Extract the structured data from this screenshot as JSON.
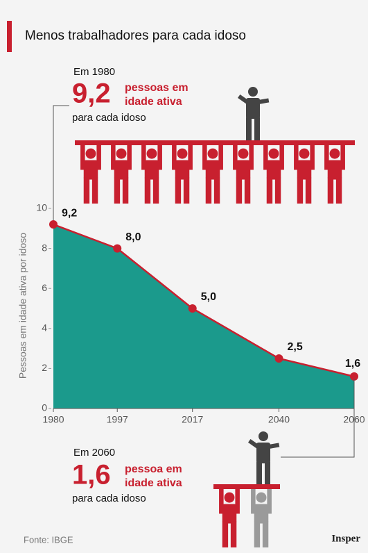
{
  "chart_data": {
    "type": "area",
    "title": "Menos trabalhadores para cada idoso",
    "ylabel": "Pessoas em idade ativa por idoso",
    "x": [
      1980,
      1997,
      2017,
      2040,
      2060
    ],
    "values": [
      9.2,
      8.0,
      5.0,
      2.5,
      1.6
    ],
    "value_labels": [
      "9,2",
      "8,0",
      "5,0",
      "2,5",
      "1,6"
    ],
    "xlim": [
      1980,
      2060
    ],
    "xticks": [
      1980,
      1997,
      2017,
      2040,
      2060
    ],
    "ylim": [
      0,
      10
    ],
    "yticks": [
      0,
      2,
      4,
      6,
      8,
      10
    ],
    "color": "#1b9a8c",
    "line_color": "#c8202f"
  },
  "annotations": {
    "top": {
      "intro": "Em 1980",
      "number": "9,2",
      "text_lines": [
        "pessoas em",
        "idade ativa"
      ],
      "outro": "para cada idoso"
    },
    "bottom": {
      "intro": "Em 2060",
      "number": "1,6",
      "text_lines": [
        "pessoa em",
        "idade ativa"
      ],
      "outro": "para cada idoso"
    }
  },
  "source": "Fonte: IBGE",
  "brand": "Insper"
}
